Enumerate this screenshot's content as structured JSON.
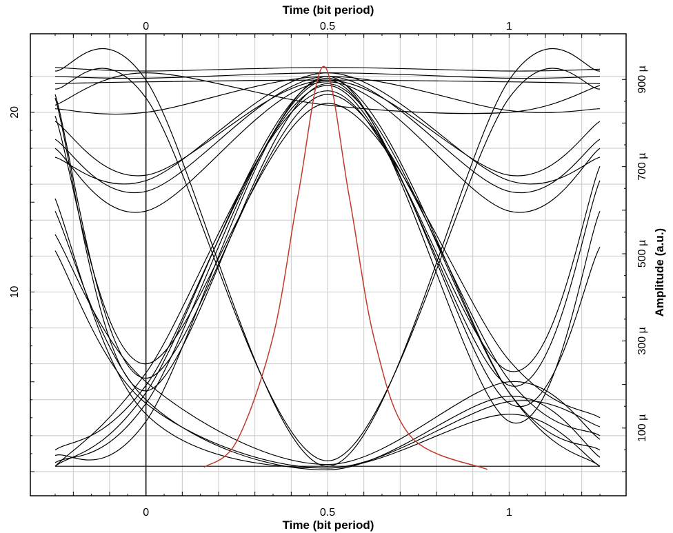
{
  "chart_data": {
    "type": "line",
    "title": "",
    "xlabel_top": "Time (bit period)",
    "xlabel_bottom": "Time (bit period)",
    "ylabel_left": "",
    "ylabel_right": "Amplitude (a.u.)",
    "xlim": [
      -0.25,
      1.25
    ],
    "ylim_left": [
      0,
      22.8
    ],
    "ylim_right": [
      0,
      0.00094
    ],
    "x_ticks": [
      0,
      0.5,
      1
    ],
    "x_tick_labels": [
      "0",
      "0.5",
      "1"
    ],
    "y_left_ticks": [
      10,
      20
    ],
    "y_left_tick_labels": [
      "10",
      "20"
    ],
    "y_right_ticks": [
      0.0001,
      0.0003,
      0.0005,
      0.0007,
      0.0009
    ],
    "y_right_tick_labels": [
      "100 µ",
      "300 µ",
      "500 µ",
      "700 µ",
      "900 µ"
    ],
    "grid": true,
    "series": [
      {
        "axis": "left",
        "color": "#000000",
        "traces": [
          {
            "x": [
              -0.25,
              0,
              0.5,
              1,
              1.25
            ],
            "y": [
              0.3,
              0.3,
              0.3,
              0.3,
              0.3
            ]
          },
          {
            "x": [
              -0.25,
              0,
              0.5,
              1,
              1.25
            ],
            "y": [
              22.5,
              22.3,
              22.5,
              22.3,
              22.4
            ]
          },
          {
            "x": [
              -0.25,
              0,
              0.5,
              1,
              1.25
            ],
            "y": [
              22.0,
              21.9,
              22.2,
              21.9,
              22.0
            ]
          },
          {
            "x": [
              -0.25,
              0,
              0.5,
              1,
              1.25
            ],
            "y": [
              21.6,
              21.7,
              21.8,
              21.7,
              21.6
            ]
          },
          {
            "x": [
              -0.25,
              0,
              0.5,
              1,
              1.25
            ],
            "y": [
              20.4,
              22.2,
              20.4,
              20.0,
              21.5
            ]
          },
          {
            "x": [
              -0.25,
              0,
              0.5,
              1,
              1.25
            ],
            "y": [
              20.2,
              20.0,
              22.0,
              20.1,
              20.2
            ]
          },
          {
            "x": [
              -0.25,
              0,
              0.5,
              1,
              1.25
            ],
            "y": [
              19.5,
              16.5,
              21.8,
              16.5,
              19.5
            ]
          },
          {
            "x": [
              -0.25,
              0,
              0.5,
              1,
              1.25
            ],
            "y": [
              18.5,
              15.6,
              22.0,
              15.6,
              18.5
            ]
          },
          {
            "x": [
              -0.25,
              0,
              0.5,
              1,
              1.25
            ],
            "y": [
              18.0,
              14.5,
              21.7,
              14.5,
              18.0
            ]
          },
          {
            "x": [
              -0.25,
              0,
              0.5,
              1,
              1.25
            ],
            "y": [
              17.5,
              16.2,
              22.2,
              16.2,
              17.5
            ]
          },
          {
            "x": [
              -0.25,
              0,
              0.5,
              1,
              1.25
            ],
            "y": [
              15.2,
              3.2,
              0.2,
              3.2,
              0.3
            ]
          },
          {
            "x": [
              -0.25,
              0,
              0.5,
              1,
              1.25
            ],
            "y": [
              14.5,
              4.0,
              0.1,
              4.2,
              0.8
            ]
          },
          {
            "x": [
              -0.25,
              0,
              0.5,
              1,
              1.25
            ],
            "y": [
              13.2,
              5.0,
              0.4,
              5.0,
              1.8
            ]
          },
          {
            "x": [
              -0.25,
              0,
              0.5,
              1,
              1.25
            ],
            "y": [
              12.3,
              3.8,
              0.2,
              3.9,
              2.5
            ]
          },
          {
            "x": [
              -0.25,
              0,
              0.5,
              1,
              1.25
            ],
            "y": [
              0.5,
              3.8,
              21.8,
              3.8,
              12.5
            ]
          },
          {
            "x": [
              -0.25,
              0,
              0.5,
              1,
              1.25
            ],
            "y": [
              0.9,
              2.8,
              22.0,
              2.8,
              14.5
            ]
          },
          {
            "x": [
              -0.25,
              0,
              0.5,
              1,
              1.25
            ],
            "y": [
              1.2,
              4.8,
              21.5,
              4.8,
              16.2
            ]
          },
          {
            "x": [
              -0.25,
              0,
              0.5,
              1,
              1.25
            ],
            "y": [
              0.3,
              5.5,
              21.2,
              5.6,
              17.0
            ]
          },
          {
            "x": [
              -0.25,
              0,
              0.5,
              1,
              1.25
            ],
            "y": [
              19.8,
              6.0,
              20.5,
              6.2,
              3.0
            ]
          },
          {
            "x": [
              -0.25,
              0,
              0.5,
              1,
              1.25
            ],
            "y": [
              21.0,
              5.2,
              21.0,
              5.1,
              2.0
            ]
          },
          {
            "x": [
              -0.25,
              0,
              0.5,
              1,
              1.25
            ],
            "y": [
              20.8,
              4.5,
              21.6,
              4.4,
              1.2
            ]
          },
          {
            "x": [
              -0.25,
              0,
              0.5,
              1,
              1.25
            ],
            "y": [
              0.3,
              4.4,
              21.9,
              4.4,
              0.3
            ]
          },
          {
            "x": [
              -0.25,
              0,
              0.5,
              1,
              1.25
            ],
            "y": [
              22.3,
              21.8,
              0.3,
              21.8,
              22.3
            ]
          },
          {
            "x": [
              -0.25,
              0,
              0.5,
              1,
              1.25
            ],
            "y": [
              21.3,
              20.8,
              0.6,
              20.8,
              21.3
            ]
          }
        ]
      },
      {
        "axis": "right",
        "color": "#c0392b",
        "traces": [
          {
            "x": [
              0.16,
              0.25,
              0.35,
              0.42,
              0.49,
              0.56,
              0.63,
              0.73,
              0.94
            ],
            "y": [
              1e-05,
              7e-05,
              0.00031,
              0.00064,
              0.00093,
              0.00063,
              0.0003,
              8e-05,
              5e-06
            ]
          }
        ]
      }
    ]
  }
}
